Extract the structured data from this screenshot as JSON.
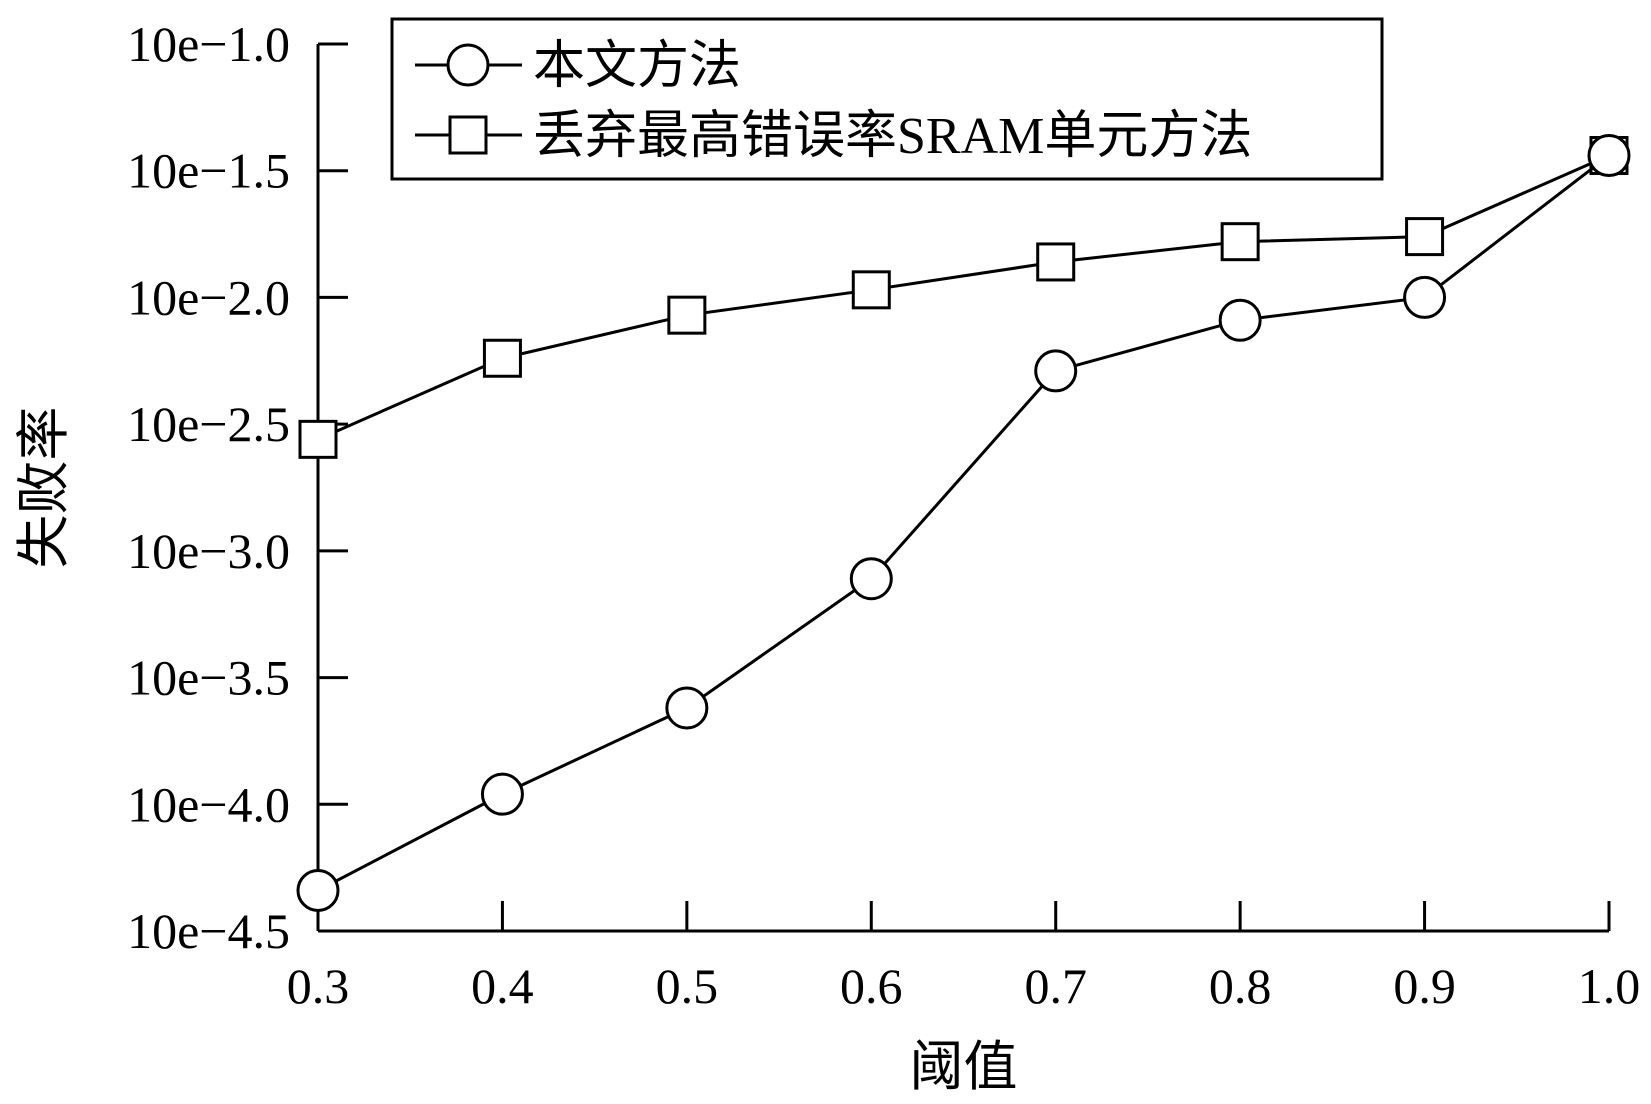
{
  "chart_data": {
    "type": "line",
    "xlabel": "阈值",
    "ylabel": "失败率",
    "x": [
      0.3,
      0.4,
      0.5,
      0.6,
      0.7,
      0.8,
      0.9,
      1.0
    ],
    "x_ticks": [
      "0.3",
      "0.4",
      "0.5",
      "0.6",
      "0.7",
      "0.8",
      "0.9",
      "1.0"
    ],
    "xlim": [
      0.3,
      1.0
    ],
    "y_scale": "log10-exponent",
    "y_tick_values": [
      -1.0,
      -1.5,
      -2.0,
      -2.5,
      -3.0,
      -3.5,
      -4.0,
      -4.5
    ],
    "y_ticks": [
      "10e−1.0",
      "10e−1.5",
      "10e−2.0",
      "10e−2.5",
      "10e−3.0",
      "10e−3.5",
      "10e−4.0",
      "10e−4.5"
    ],
    "ylim": [
      -4.5,
      -1.0
    ],
    "grid": false,
    "legend_position": "top-left",
    "series": [
      {
        "name": "本文方法",
        "marker": "circle",
        "values": [
          -4.34,
          -3.96,
          -3.62,
          -3.11,
          -2.29,
          -2.09,
          -2.0,
          -1.44
        ]
      },
      {
        "name": "丢弃最高错误率SRAM单元方法",
        "marker": "square",
        "values": [
          -2.56,
          -2.24,
          -2.07,
          -1.97,
          -1.86,
          -1.78,
          -1.76,
          -1.44
        ]
      }
    ],
    "colors": {
      "line": "#000000",
      "marker_fill": "#ffffff"
    }
  }
}
